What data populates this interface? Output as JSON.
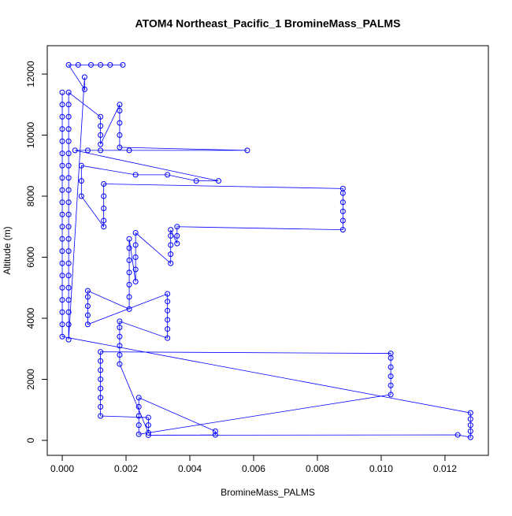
{
  "chart_data": {
    "type": "line",
    "title": "ATOM4 Northeast_Pacific_1 BromineMass_PALMS",
    "x_label": "BromineMass_PALMS",
    "y_label": "Altitude (m)",
    "markers": true,
    "color": "#0000ff",
    "xlim": [
      -0.00047,
      0.01336
    ],
    "ylim": [
      -490,
      12930
    ],
    "xticks": [
      {
        "value": 0,
        "label": "0.000"
      },
      {
        "value": 0.002,
        "label": "0.002"
      },
      {
        "value": 0.004,
        "label": "0.004"
      },
      {
        "value": 0.006,
        "label": "0.006"
      },
      {
        "value": 0.008,
        "label": "0.008"
      },
      {
        "value": 0.01,
        "label": "0.010"
      },
      {
        "value": 0.012,
        "label": "0.012"
      }
    ],
    "yticks": [
      0,
      2000,
      4000,
      6000,
      8000,
      10000,
      12000
    ],
    "x": [
      0,
      0,
      0,
      0,
      0,
      0,
      0,
      0,
      0,
      0,
      0,
      0,
      0,
      0,
      0,
      0,
      0,
      0,
      0,
      0,
      0,
      0.0128,
      0.0128,
      0.0128,
      0.0128,
      0.0128,
      0.0124,
      0.0027,
      0.0048,
      0.0048,
      0.0024,
      0.0024,
      0.0024,
      0.0024,
      0.0024,
      0.0103,
      0.0103,
      0.0103,
      0.0103,
      0.0103,
      0.0103,
      0.0012,
      0.0012,
      0.0012,
      0.0012,
      0.0012,
      0.0012,
      0.0012,
      0.0012,
      0.0027,
      0.0027,
      0.0027,
      0.0018,
      0.0018,
      0.0018,
      0.0018,
      0.0018,
      0.0018,
      0.0033,
      0.0033,
      0.0033,
      0.0033,
      0.0033,
      0.0033,
      0.0008,
      0.0008,
      0.0008,
      0.0008,
      0.0008,
      0.0021,
      0.0021,
      0.0021,
      0.0021,
      0.0021,
      0.0021,
      0.0021,
      0.0023,
      0.0023,
      0.0023,
      0.0023,
      0.0023,
      0.0034,
      0.0034,
      0.0034,
      0.0034,
      0.0034,
      0.0036,
      0.0036,
      0.0036,
      0.0088,
      0.0088,
      0.0088,
      0.0088,
      0.0088,
      0.0088,
      0.0013,
      0.0013,
      0.0013,
      0.0013,
      0.0013,
      0.0006,
      0.0006,
      0.0006,
      0.0023,
      0.0033,
      0.0042,
      0.0049,
      0.0004,
      0.0008,
      0.0012,
      0.0021,
      0.0058,
      0.0018,
      0.0018,
      0.0018,
      0.0018,
      0.0018,
      0.0012,
      0.0012,
      0.0012,
      0.0012,
      0.0002,
      0.0002,
      0.0002,
      0.0002,
      0.0002,
      0.0002,
      0.0002,
      0.0002,
      0.0002,
      0.0002,
      0.0002,
      0.0002,
      0.0002,
      0.0002,
      0.0002,
      0.0002,
      0.0002,
      0.0002,
      0.0002,
      0.0002,
      0.0002,
      0.0007,
      0.0007,
      0.0002,
      0.0005,
      0.0009,
      0.0012,
      0.0015,
      0.0019
    ],
    "y": [
      11400,
      11000,
      10600,
      10200,
      9800,
      9400,
      9000,
      8600,
      8200,
      7800,
      7400,
      7000,
      6600,
      6200,
      5800,
      5400,
      5000,
      4600,
      4200,
      3800,
      3400,
      900,
      700,
      500,
      300,
      100,
      180,
      170,
      180,
      300,
      1400,
      1100,
      800,
      500,
      200,
      1500,
      1800,
      2100,
      2400,
      2700,
      2850,
      2900,
      2600,
      2300,
      2000,
      1700,
      1400,
      1100,
      800,
      750,
      500,
      250,
      2500,
      2800,
      3100,
      3400,
      3700,
      3900,
      3350,
      3650,
      3950,
      4250,
      4550,
      4800,
      3800,
      4100,
      4400,
      4700,
      4900,
      4300,
      4700,
      5100,
      5500,
      5900,
      6300,
      6600,
      5200,
      5600,
      6000,
      6400,
      6800,
      5800,
      6100,
      6400,
      6700,
      6900,
      6450,
      6700,
      7000,
      6900,
      7200,
      7500,
      7800,
      8100,
      8250,
      8400,
      8000,
      7600,
      7200,
      7000,
      8000,
      8500,
      9000,
      8700,
      8700,
      8500,
      8500,
      9500,
      9500,
      9500,
      9500,
      9500,
      9600,
      10000,
      10400,
      10800,
      11000,
      9700,
      10000,
      10300,
      10600,
      11400,
      11000,
      10600,
      10200,
      9800,
      9400,
      9000,
      8600,
      8200,
      7800,
      7400,
      7000,
      6600,
      6200,
      5800,
      5400,
      5000,
      4600,
      4200,
      3800,
      3300,
      11900,
      11500,
      12300,
      12300,
      12300,
      12300,
      12300,
      12300
    ]
  }
}
